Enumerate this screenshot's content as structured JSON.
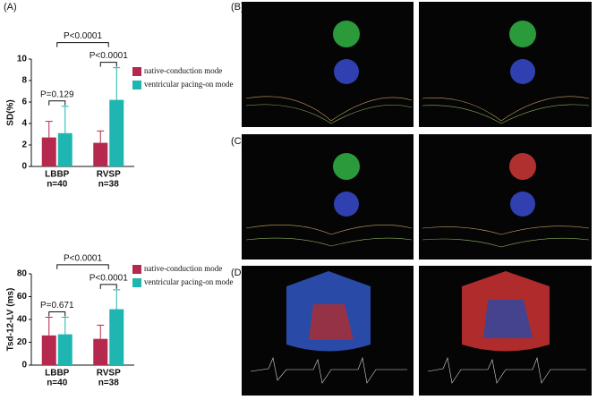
{
  "panel_labels": {
    "a": "(A)",
    "b": "(B)",
    "c": "(C)",
    "d": "(D)"
  },
  "chart_data": [
    {
      "type": "bar",
      "ylabel": "SD(%)",
      "categories": [
        "LBBP",
        "RVSP"
      ],
      "sample_sizes": [
        "n=40",
        "n=38"
      ],
      "series": [
        {
          "name": "native-conduction mode",
          "color": "#b5294e",
          "values": [
            2.7,
            2.2
          ],
          "errors": [
            1.5,
            1.1
          ]
        },
        {
          "name": "ventricular pacing-on mode",
          "color": "#1fb5b0",
          "values": [
            3.1,
            6.2
          ],
          "errors": [
            2.5,
            3.0
          ]
        }
      ],
      "ylim": [
        0,
        10
      ],
      "yticks": [
        0,
        2,
        4,
        6,
        8,
        10
      ],
      "annotations": [
        "P=0.129",
        "P<0.0001",
        "P<0.0001"
      ]
    },
    {
      "type": "bar",
      "ylabel": "Tsd-12-LV (ms)",
      "categories": [
        "LBBP",
        "RVSP"
      ],
      "sample_sizes": [
        "n=40",
        "n=38"
      ],
      "series": [
        {
          "name": "native-conduction mode",
          "color": "#b5294e",
          "values": [
            26,
            23
          ],
          "errors": [
            16,
            12
          ]
        },
        {
          "name": "ventricular pacing-on mode",
          "color": "#1fb5b0",
          "values": [
            27,
            49
          ],
          "errors": [
            15,
            17
          ]
        }
      ],
      "ylim": [
        0,
        80
      ],
      "yticks": [
        0,
        20,
        40,
        60,
        80
      ],
      "annotations": [
        "P=0.671",
        "P<0.0001",
        "P<0.0001"
      ]
    }
  ]
}
